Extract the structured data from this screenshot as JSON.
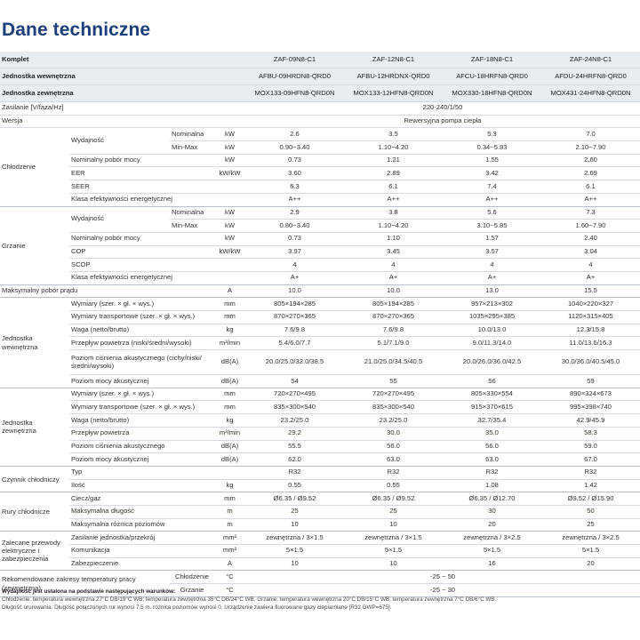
{
  "title": "Dane techniczne",
  "header_rows": [
    {
      "label": "Komplet",
      "values": [
        "ZAF-09N8-C1",
        "ZAF-12N8-C1",
        "ZAF-18N8-C1",
        "ZAF-24N8-C1"
      ]
    },
    {
      "label": "Jednostka wewnętrzna",
      "values": [
        "AFBU-09HRDN8-QRD0",
        "AFBU-12HRDNX-QRD0",
        "AFCU-18HRFN8-QRD0",
        "AFDU-24HRFN8-QRD0"
      ]
    },
    {
      "label": "Jednostka zewnętrzna",
      "values": [
        "MOX133-09HFN8-QRD0N",
        "MOX133-12HFN8-QRD0N",
        "MOX330-18HFN8-QRD0N",
        "MOX431-24HFN8-QRD0N"
      ]
    }
  ],
  "supply": {
    "label": "Zasilanie [V/faza/Hz]",
    "value": "220-240/1/50"
  },
  "version": {
    "label": "Wersja",
    "value": "Rewersyjna pompa ciepła"
  },
  "cooling": {
    "group": "Chłodzenie",
    "capacity": "Wydajność",
    "rows": [
      {
        "sub": "Nominalna",
        "unit": "kW",
        "values": [
          "2.6",
          "3.5",
          "5.3",
          "7.0"
        ]
      },
      {
        "sub": "Min-Max",
        "unit": "kW",
        "values": [
          "0.90~3.40",
          "1.10~4.20",
          "0.34~5.83",
          "2.10~7.90"
        ]
      },
      {
        "label": "Nominalny pobór mocy",
        "unit": "kW",
        "values": [
          "0.73",
          "1.21",
          "1.55",
          "2.60"
        ]
      },
      {
        "label": "EER",
        "unit": "kW/kW",
        "values": [
          "3.60",
          "2.89",
          "3.42",
          "2.69"
        ]
      },
      {
        "label": "SEER",
        "unit": "",
        "values": [
          "6.3",
          "6.1",
          "7.4",
          "6.1"
        ]
      },
      {
        "label": "Klasa efektywności energetycznej",
        "unit": "",
        "values": [
          "A++",
          "A++",
          "A++",
          "A++"
        ]
      }
    ]
  },
  "heating": {
    "group": "Grzanie",
    "capacity": "Wydajność",
    "rows": [
      {
        "sub": "Nominalna",
        "unit": "kW",
        "values": [
          "2.9",
          "3.8",
          "5.6",
          "7.3"
        ]
      },
      {
        "sub": "Min-Max",
        "unit": "kW",
        "values": [
          "0.80~3.40",
          "1.10~4.20",
          "3.10~5.85",
          "1.60~7.90"
        ]
      },
      {
        "label": "Nominalny pobór mocy",
        "unit": "kW",
        "values": [
          "0.73",
          "1.10",
          "1.57",
          "2.40"
        ]
      },
      {
        "label": "COP",
        "unit": "kW/kW",
        "values": [
          "3.97",
          "3.45",
          "3.57",
          "3.04"
        ]
      },
      {
        "label": "SCOP",
        "unit": "",
        "values": [
          "4",
          "4",
          "4",
          "4"
        ]
      },
      {
        "label": "Klasa efektywności energetycznej",
        "unit": "",
        "values": [
          "A+",
          "A+",
          "A+",
          "A+"
        ]
      }
    ]
  },
  "max_current": {
    "label": "Maksymalny pobór prądu",
    "unit": "A",
    "values": [
      "10.0",
      "10.0",
      "13.0",
      "15.5"
    ]
  },
  "indoor": {
    "group": "Jednostka wewnętrzna",
    "rows": [
      {
        "label": "Wymiary (szer. × gł. × wys.)",
        "unit": "mm",
        "values": [
          "805×194×285",
          "805×194×285",
          "957×213×302",
          "1040×220×327"
        ]
      },
      {
        "label": "Wymiary transportowe (szer. × gł. × wys.)",
        "unit": "mm",
        "values": [
          "870×270×365",
          "870×270×365",
          "1035×295×385",
          "1120×315×405"
        ]
      },
      {
        "label": "Waga (netto/brutto)",
        "unit": "kg",
        "values": [
          "7.6/9.8",
          "7.6/9.8",
          "10.0/13.0",
          "12.3/15.8"
        ]
      },
      {
        "label": "Przepływ powietrza (niski/średni/wysoki)",
        "unit": "m³/min",
        "values": [
          "5.4/6.0/7.7",
          "5.1/7.1/9.0",
          "9.0/11.3/14.0",
          "11.0/13.6/16.3"
        ]
      },
      {
        "label": "Poziom ciśnienia akustycznego (cichy/niski/średni/wysoki)",
        "unit": "dB(A)",
        "tall": true,
        "values": [
          "20.0/25.0/32.0/38.5",
          "21.0/25.0/34.5/40.5",
          "20.0/26.0/36.0/42.5",
          "30.0/36.0/40.5/45.0"
        ]
      },
      {
        "label": "Poziom mocy akustycznej",
        "unit": "dB(A)",
        "values": [
          "54",
          "55",
          "56",
          "59"
        ]
      }
    ]
  },
  "outdoor": {
    "group": "Jednostka zewnętrzna",
    "rows": [
      {
        "label": "Wymiary (szer. × gł. × wys.)",
        "unit": "mm",
        "values": [
          "720×270×495",
          "720×270×495",
          "805×330×554",
          "890×324×673"
        ]
      },
      {
        "label": "Wymiary transportowe (szer. × gł. × wys.)",
        "unit": "mm",
        "values": [
          "835×300×540",
          "835×300×540",
          "915×370×615",
          "995×398×740"
        ]
      },
      {
        "label": "Waga (netto/brutto)",
        "unit": "kg",
        "values": [
          "23.2/25.0",
          "23.2/25.0",
          "32.7/35.4",
          "42.9/45.9"
        ]
      },
      {
        "label": "Przepływ powietrza",
        "unit": "m³/min",
        "values": [
          "29.2",
          "30.0",
          "35.0",
          "58.3"
        ]
      },
      {
        "label": "Poziom ciśnienia akustycznego",
        "unit": "dB(A)",
        "values": [
          "55.5",
          "56.0",
          "56.0",
          "59.0"
        ]
      },
      {
        "label": "Poziom mocy akustycznej",
        "unit": "dB(A)",
        "values": [
          "62.0",
          "63.0",
          "63.0",
          "67.0"
        ]
      }
    ]
  },
  "refrigerant": {
    "group": "Czynnik chłodniczy",
    "rows": [
      {
        "label": "Typ",
        "unit": "",
        "values": [
          "R32",
          "R32",
          "R32",
          "R32"
        ]
      },
      {
        "label": "Ilość",
        "unit": "kg",
        "values": [
          "0.55",
          "0.55",
          "1.08",
          "1.42"
        ]
      }
    ]
  },
  "pipes": {
    "group": "Rury chłodnicze",
    "rows": [
      {
        "label": "Ciecz/gaz",
        "unit": "mm",
        "values": [
          "Ø6.35 / Ø9.52",
          "Ø6.35 / Ø9.52",
          "Ø6.35 / Ø12.70",
          "Ø9.52 / Ø15.90"
        ]
      },
      {
        "label": "Maksymalna długość",
        "unit": "m",
        "values": [
          "25",
          "25",
          "30",
          "50"
        ]
      },
      {
        "label": "Maksymalna różnica poziomów",
        "unit": "m",
        "values": [
          "10",
          "10",
          "20",
          "25"
        ]
      }
    ]
  },
  "wiring": {
    "group": "Zalecane przewody elektryczne i zabezpieczenia",
    "rows": [
      {
        "label": "Zasilanie jednostka/przekrój",
        "unit": "mm²",
        "values": [
          "zewnętrzna / 3×1.5",
          "zewnętrzna / 3×1.5",
          "zewnętrzna / 3×2.5",
          "zewnętrzna / 3×2.5"
        ]
      },
      {
        "label": "Komunikacja",
        "unit": "mm²",
        "values": [
          "5×1.5",
          "5×1.5",
          "5×1.5",
          "5×1.5"
        ]
      },
      {
        "label": "Zabezpieczenie",
        "unit": "A",
        "values": [
          "10",
          "10",
          "16",
          "20"
        ]
      }
    ]
  },
  "temp_range": {
    "group": "Rekomendowane zakresy temperatury pracy (zewnętrzna)",
    "rows": [
      {
        "sub": "Chłodzenie",
        "unit": "°C",
        "value": "-25 ~ 50"
      },
      {
        "sub": "Grzanie",
        "unit": "°C",
        "value": "-25 ~ 30"
      }
    ]
  },
  "notes": {
    "title": "Wydajność jest ustalona na podstawie następujących warunków:",
    "lines": [
      "Chłodzenie: temperatura wewnętrzna 27°C DB/19°C WB; temperatura zewnętrzna 35°C DB/24°C WB. Grzanie: temperatura wewnętrzna 20°C  DB/15°C WB; temperatura zewnętrzna 7°C  DB/6°C WB.",
      "Długość orurowania: Długość połączonych rur wynosi 7.5 m. różnica poziomów wynosi 0. Urządzenie zawiera fluorowane gazy cieplarniane [R32 GWP=675]."
    ]
  }
}
